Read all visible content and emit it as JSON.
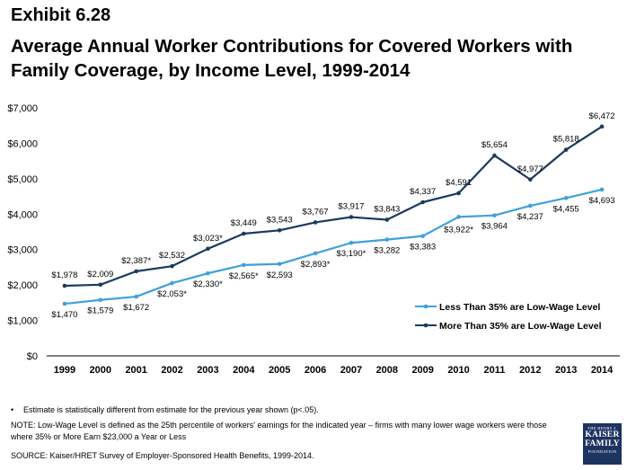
{
  "header": {
    "exhibit": "Exhibit 6.28",
    "title": "Average Annual Worker Contributions for Covered Workers with Family Coverage, by Income Level, 1999-2014"
  },
  "chart_data": {
    "type": "line",
    "title": "Average Annual Worker Contributions for Covered Workers with Family Coverage, by Income Level, 1999-2014",
    "xlabel": "",
    "ylabel": "",
    "ylim": [
      0,
      7000
    ],
    "yticks": [
      "$0",
      "$1,000",
      "$2,000",
      "$3,000",
      "$4,000",
      "$5,000",
      "$6,000",
      "$7,000"
    ],
    "ytick_values": [
      0,
      1000,
      2000,
      3000,
      4000,
      5000,
      6000,
      7000
    ],
    "grid": false,
    "legend_position": "bottom-right",
    "x": [
      "1999",
      "2000",
      "2001",
      "2002",
      "2003",
      "2004",
      "2005",
      "2006",
      "2007",
      "2008",
      "2009",
      "2010",
      "2011",
      "2012",
      "2013",
      "2014"
    ],
    "series": [
      {
        "name": "Less Than 35% are Low-Wage Level",
        "color": "#3fa1dc",
        "values": [
          1470,
          1579,
          1672,
          2053,
          2330,
          2565,
          2593,
          2893,
          3190,
          3282,
          3383,
          3922,
          3964,
          4237,
          4455,
          4693
        ],
        "labels": [
          "$1,470",
          "$1,579",
          "$1,672",
          "$2,053*",
          "$2,330*",
          "$2,565*",
          "$2,593",
          "$2,893*",
          "$3,190*",
          "$3,282",
          "$3,383",
          "$3,922*",
          "$3,964",
          "$4,237",
          "$4,455",
          "$4,693"
        ]
      },
      {
        "name": "More Than 35% are Low-Wage Level",
        "color": "#1b3a5f",
        "values": [
          1978,
          2009,
          2387,
          2532,
          3023,
          3449,
          3543,
          3767,
          3917,
          3843,
          4337,
          4591,
          5654,
          4977,
          5818,
          6472
        ],
        "labels": [
          "$1,978",
          "$2,009",
          "$2,387*",
          "$2,532",
          "$3,023*",
          "$3,449",
          "$3,543",
          "$3,767",
          "$3,917",
          "$3,843",
          "$4,337",
          "$4,591",
          "$5,654",
          "$4,977",
          "$5,818",
          "$6,472"
        ]
      }
    ]
  },
  "footer": {
    "bullet": "•",
    "asterisk_note": "Estimate is statistically different from estimate for the previous year shown (p<.05).",
    "note": "NOTE: Low-Wage Level is defined as the 25th percentile of workers' earnings for the indicated year – firms with many lower wage workers were those where 35% or More Earn $23,000 a Year or Less",
    "source": "SOURCE:  Kaiser/HRET Survey of Employer-Sponsored Health Benefits, 1999-2014."
  },
  "logo": {
    "line1": "THE HENRY J.",
    "line2": "KAISER",
    "line3": "FAMILY",
    "line4": "FOUNDATION"
  }
}
